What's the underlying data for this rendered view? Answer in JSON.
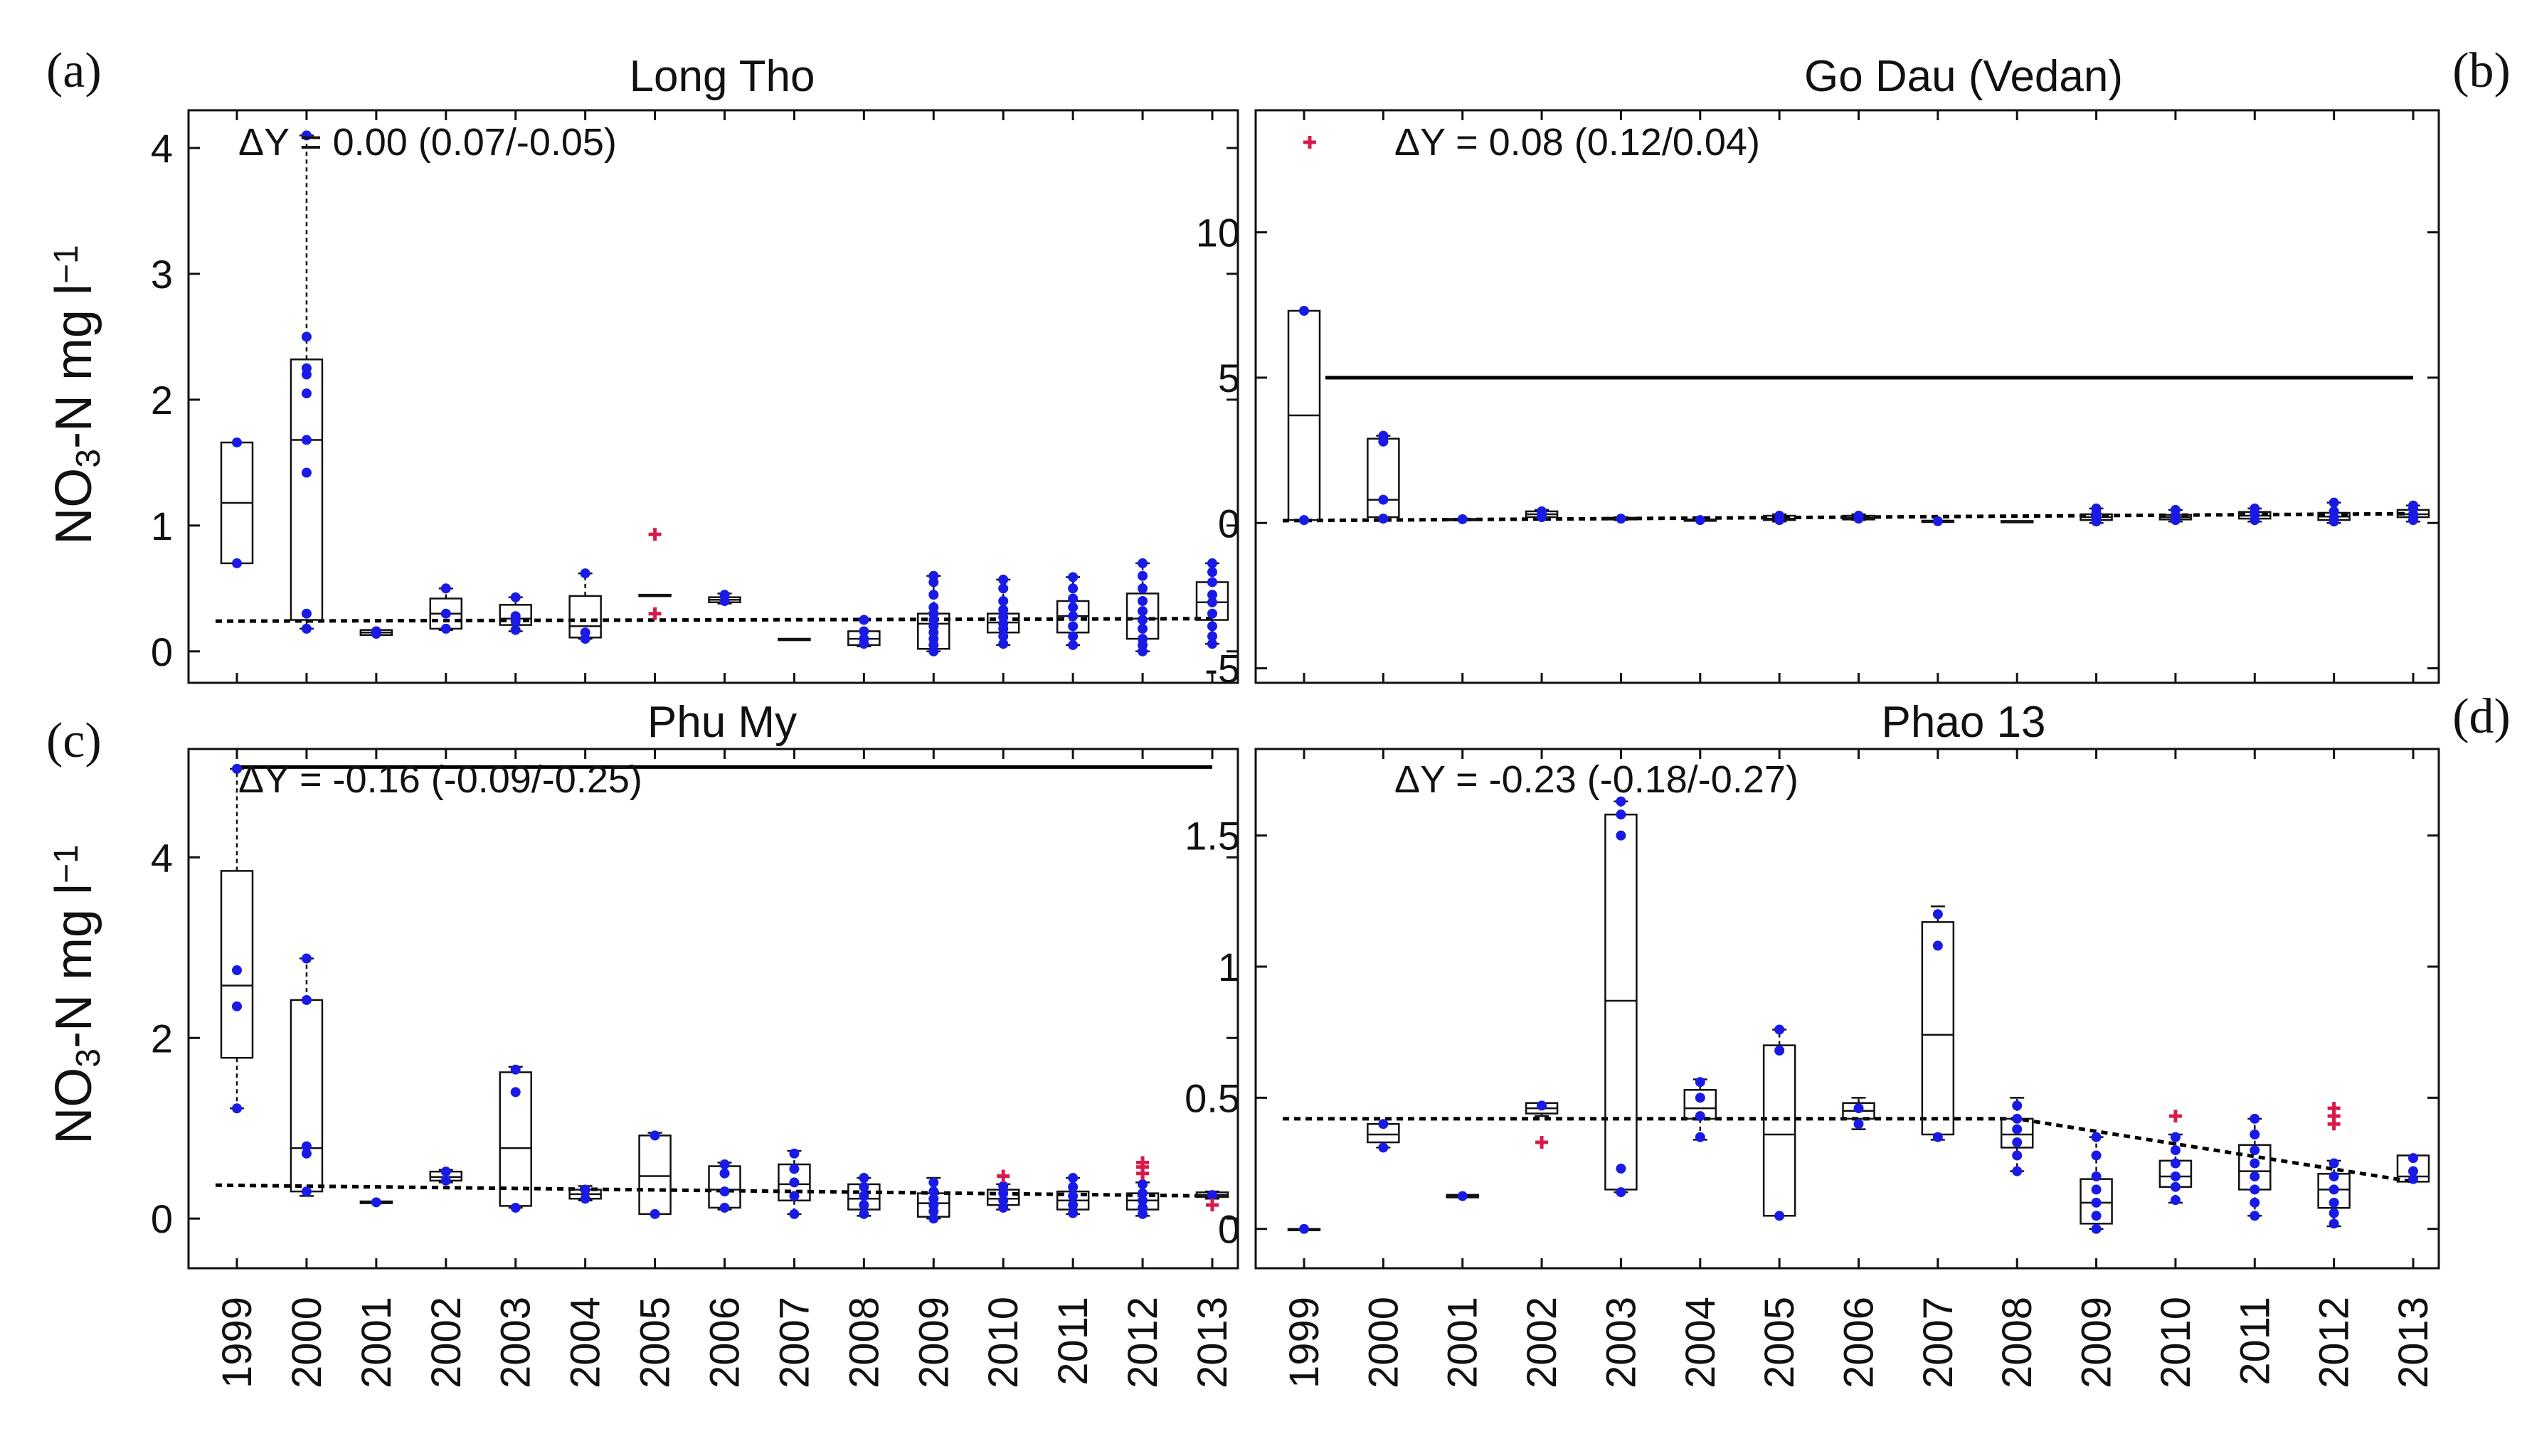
{
  "chart_data": [
    {
      "type": "box",
      "panel_label": "(a)",
      "title": "Long Tho",
      "ylabel": "NO3-N mg l-1",
      "ylim": [
        -0.25,
        4.3
      ],
      "yticks": [
        0,
        1,
        2,
        3,
        4
      ],
      "delta_text": "ΔY = 0.00 (0.07/-0.05)",
      "threshold": null,
      "trend": [
        {
          "x": "1999",
          "y": 0.24
        },
        {
          "x": "2013",
          "y": 0.26
        }
      ],
      "boxes": [
        {
          "x": "1999",
          "q1": 0.7,
          "med": 1.18,
          "q3": 1.66,
          "wlo": 0.7,
          "whi": 1.66,
          "pts": [
            0.7,
            1.66
          ],
          "out": []
        },
        {
          "x": "2000",
          "q1": 0.25,
          "med": 1.68,
          "q3": 2.32,
          "wlo": 0.18,
          "whi": 4.1,
          "pts": [
            0.18,
            0.3,
            1.42,
            1.68,
            2.05,
            2.2,
            2.25,
            2.5,
            4.1
          ],
          "out": []
        },
        {
          "x": "2001",
          "q1": 0.13,
          "med": 0.15,
          "q3": 0.17,
          "wlo": 0.13,
          "whi": 0.17,
          "pts": [
            0.14,
            0.16
          ],
          "out": []
        },
        {
          "x": "2002",
          "q1": 0.18,
          "med": 0.3,
          "q3": 0.42,
          "wlo": 0.17,
          "whi": 0.5,
          "pts": [
            0.18,
            0.3,
            0.5
          ],
          "out": []
        },
        {
          "x": "2003",
          "q1": 0.21,
          "med": 0.26,
          "q3": 0.37,
          "wlo": 0.16,
          "whi": 0.43,
          "pts": [
            0.17,
            0.24,
            0.28,
            0.43
          ],
          "out": []
        },
        {
          "x": "2004",
          "q1": 0.11,
          "med": 0.2,
          "q3": 0.44,
          "wlo": 0.1,
          "whi": 0.62,
          "pts": [
            0.1,
            0.15,
            0.62
          ],
          "out": []
        },
        {
          "x": "2005",
          "q1": 0.44,
          "med": 0.44,
          "q3": 0.45,
          "wlo": 0.44,
          "whi": 0.45,
          "pts": [],
          "out": [
            0.93,
            0.3
          ]
        },
        {
          "x": "2006",
          "q1": 0.39,
          "med": 0.41,
          "q3": 0.43,
          "wlo": 0.38,
          "whi": 0.46,
          "pts": [
            0.4,
            0.45
          ],
          "out": []
        },
        {
          "x": "2007",
          "q1": 0.1,
          "med": 0.1,
          "q3": 0.1,
          "wlo": 0.1,
          "whi": 0.1,
          "pts": [],
          "out": []
        },
        {
          "x": "2008",
          "q1": 0.05,
          "med": 0.1,
          "q3": 0.16,
          "wlo": 0.04,
          "whi": 0.25,
          "pts": [
            0.06,
            0.1,
            0.16,
            0.25
          ],
          "out": []
        },
        {
          "x": "2009",
          "q1": 0.02,
          "med": 0.22,
          "q3": 0.3,
          "wlo": 0.0,
          "whi": 0.6,
          "pts": [
            0.0,
            0.05,
            0.1,
            0.15,
            0.2,
            0.25,
            0.3,
            0.35,
            0.45,
            0.55,
            0.6
          ],
          "out": []
        },
        {
          "x": "2010",
          "q1": 0.15,
          "med": 0.23,
          "q3": 0.3,
          "wlo": 0.05,
          "whi": 0.57,
          "pts": [
            0.06,
            0.12,
            0.18,
            0.22,
            0.27,
            0.33,
            0.4,
            0.5,
            0.57
          ],
          "out": []
        },
        {
          "x": "2011",
          "q1": 0.15,
          "med": 0.28,
          "q3": 0.4,
          "wlo": 0.05,
          "whi": 0.59,
          "pts": [
            0.05,
            0.12,
            0.2,
            0.28,
            0.35,
            0.42,
            0.5,
            0.59
          ],
          "out": []
        },
        {
          "x": "2012",
          "q1": 0.1,
          "med": 0.26,
          "q3": 0.46,
          "wlo": 0.0,
          "whi": 0.7,
          "pts": [
            0.0,
            0.05,
            0.1,
            0.18,
            0.25,
            0.32,
            0.4,
            0.5,
            0.6,
            0.7
          ],
          "out": []
        },
        {
          "x": "2013",
          "q1": 0.25,
          "med": 0.39,
          "q3": 0.55,
          "wlo": 0.06,
          "whi": 0.7,
          "pts": [
            0.06,
            0.12,
            0.2,
            0.3,
            0.39,
            0.45,
            0.55,
            0.63,
            0.7
          ],
          "out": []
        }
      ]
    },
    {
      "type": "box",
      "panel_label": "(b)",
      "title": "Go Dau (Vedan)",
      "ylabel": "",
      "ylim": [
        -5.5,
        14.2
      ],
      "yticks": [
        -5,
        0,
        5,
        10
      ],
      "delta_text": "ΔY = 0.08 (0.12/0.04)",
      "threshold": 5,
      "trend": [
        {
          "x": "1999",
          "y": 0.08
        },
        {
          "x": "2013",
          "y": 0.32
        }
      ],
      "boxes": [
        {
          "x": "1999",
          "q1": 0.1,
          "med": 3.7,
          "q3": 7.3,
          "wlo": 0.1,
          "whi": 7.3,
          "pts": [
            0.1,
            7.3
          ],
          "out": []
        },
        {
          "x": "2000",
          "q1": 0.2,
          "med": 0.8,
          "q3": 2.9,
          "wlo": 0.1,
          "whi": 3.0,
          "pts": [
            0.15,
            0.8,
            2.8,
            3.0
          ],
          "out": []
        },
        {
          "x": "2001",
          "q1": 0.12,
          "med": 0.13,
          "q3": 0.14,
          "wlo": 0.12,
          "whi": 0.14,
          "pts": [
            0.13
          ],
          "out": []
        },
        {
          "x": "2002",
          "q1": 0.2,
          "med": 0.3,
          "q3": 0.4,
          "wlo": 0.15,
          "whi": 0.45,
          "pts": [
            0.2,
            0.4
          ],
          "out": []
        },
        {
          "x": "2003",
          "q1": 0.12,
          "med": 0.15,
          "q3": 0.18,
          "wlo": 0.1,
          "whi": 0.2,
          "pts": [
            0.15
          ],
          "out": []
        },
        {
          "x": "2004",
          "q1": 0.08,
          "med": 0.1,
          "q3": 0.12,
          "wlo": 0.08,
          "whi": 0.12,
          "pts": [
            0.1
          ],
          "out": []
        },
        {
          "x": "2005",
          "q1": 0.1,
          "med": 0.15,
          "q3": 0.25,
          "wlo": 0.05,
          "whi": 0.3,
          "pts": [
            0.1,
            0.25
          ],
          "out": []
        },
        {
          "x": "2006",
          "q1": 0.12,
          "med": 0.18,
          "q3": 0.25,
          "wlo": 0.1,
          "whi": 0.3,
          "pts": [
            0.15,
            0.25
          ],
          "out": []
        },
        {
          "x": "2007",
          "q1": 0.04,
          "med": 0.06,
          "q3": 0.08,
          "wlo": 0.04,
          "whi": 0.08,
          "pts": [
            0.06
          ],
          "out": []
        },
        {
          "x": "2008",
          "q1": 0.05,
          "med": 0.06,
          "q3": 0.07,
          "wlo": 0.05,
          "whi": 0.07,
          "pts": [],
          "out": []
        },
        {
          "x": "2009",
          "q1": 0.1,
          "med": 0.2,
          "q3": 0.3,
          "wlo": 0.0,
          "whi": 0.5,
          "pts": [
            0.05,
            0.2,
            0.35,
            0.5
          ],
          "out": []
        },
        {
          "x": "2010",
          "q1": 0.12,
          "med": 0.2,
          "q3": 0.28,
          "wlo": 0.05,
          "whi": 0.45,
          "pts": [
            0.1,
            0.25,
            0.45
          ],
          "out": []
        },
        {
          "x": "2011",
          "q1": 0.15,
          "med": 0.25,
          "q3": 0.38,
          "wlo": 0.05,
          "whi": 0.5,
          "pts": [
            0.1,
            0.3,
            0.5
          ],
          "out": []
        },
        {
          "x": "2012",
          "q1": 0.1,
          "med": 0.22,
          "q3": 0.35,
          "wlo": 0.0,
          "whi": 0.7,
          "pts": [
            0.05,
            0.2,
            0.4,
            0.7
          ],
          "out": []
        },
        {
          "x": "2013",
          "q1": 0.2,
          "med": 0.3,
          "q3": 0.45,
          "wlo": 0.05,
          "whi": 0.6,
          "pts": [
            0.1,
            0.3,
            0.5,
            0.6
          ],
          "out": []
        }
      ],
      "outliers_extra": [
        {
          "x": "1999",
          "y": 13.1
        }
      ]
    },
    {
      "type": "box",
      "panel_label": "(c)",
      "title": "Phu My",
      "ylabel": "NO3-N mg l-1",
      "ylim": [
        -0.55,
        5.2
      ],
      "yticks": [
        0,
        2,
        4
      ],
      "delta_text": "ΔY = -0.16 (-0.09/-0.25)",
      "threshold": 5,
      "trend": [
        {
          "x": "1999",
          "y": 0.37
        },
        {
          "x": "2013",
          "y": 0.25
        }
      ],
      "boxes": [
        {
          "x": "1999",
          "q1": 1.78,
          "med": 2.58,
          "q3": 3.85,
          "wlo": 1.22,
          "whi": 4.98,
          "pts": [
            1.22,
            2.35,
            2.75,
            4.98
          ],
          "out": []
        },
        {
          "x": "2000",
          "q1": 0.3,
          "med": 0.78,
          "q3": 2.42,
          "wlo": 0.25,
          "whi": 2.88,
          "pts": [
            0.3,
            0.72,
            0.8,
            2.42,
            2.88
          ],
          "out": []
        },
        {
          "x": "2001",
          "q1": 0.17,
          "med": 0.18,
          "q3": 0.19,
          "wlo": 0.17,
          "whi": 0.19,
          "pts": [
            0.18
          ],
          "out": []
        },
        {
          "x": "2002",
          "q1": 0.42,
          "med": 0.46,
          "q3": 0.52,
          "wlo": 0.4,
          "whi": 0.54,
          "pts": [
            0.42,
            0.52
          ],
          "out": []
        },
        {
          "x": "2003",
          "q1": 0.14,
          "med": 0.78,
          "q3": 1.62,
          "wlo": 0.12,
          "whi": 1.68,
          "pts": [
            0.12,
            1.4,
            1.65
          ],
          "out": []
        },
        {
          "x": "2004",
          "q1": 0.22,
          "med": 0.27,
          "q3": 0.32,
          "wlo": 0.2,
          "whi": 0.36,
          "pts": [
            0.22,
            0.32
          ],
          "out": []
        },
        {
          "x": "2005",
          "q1": 0.05,
          "med": 0.47,
          "q3": 0.92,
          "wlo": 0.05,
          "whi": 0.95,
          "pts": [
            0.05,
            0.92
          ],
          "out": []
        },
        {
          "x": "2006",
          "q1": 0.12,
          "med": 0.32,
          "q3": 0.58,
          "wlo": 0.1,
          "whi": 0.62,
          "pts": [
            0.12,
            0.3,
            0.5,
            0.6
          ],
          "out": []
        },
        {
          "x": "2007",
          "q1": 0.2,
          "med": 0.38,
          "q3": 0.6,
          "wlo": 0.05,
          "whi": 0.75,
          "pts": [
            0.05,
            0.25,
            0.4,
            0.55,
            0.72
          ],
          "out": []
        },
        {
          "x": "2008",
          "q1": 0.1,
          "med": 0.22,
          "q3": 0.38,
          "wlo": 0.03,
          "whi": 0.45,
          "pts": [
            0.05,
            0.15,
            0.25,
            0.35,
            0.45
          ],
          "out": []
        },
        {
          "x": "2009",
          "q1": 0.02,
          "med": 0.17,
          "q3": 0.28,
          "wlo": 0.0,
          "whi": 0.45,
          "pts": [
            0.0,
            0.08,
            0.15,
            0.22,
            0.3,
            0.4
          ],
          "out": []
        },
        {
          "x": "2010",
          "q1": 0.15,
          "med": 0.22,
          "q3": 0.32,
          "wlo": 0.1,
          "whi": 0.38,
          "pts": [
            0.12,
            0.2,
            0.28,
            0.36
          ],
          "out": [
            0.47
          ]
        },
        {
          "x": "2011",
          "q1": 0.1,
          "med": 0.2,
          "q3": 0.3,
          "wlo": 0.05,
          "whi": 0.45,
          "pts": [
            0.06,
            0.15,
            0.25,
            0.35,
            0.45
          ],
          "out": []
        },
        {
          "x": "2012",
          "q1": 0.1,
          "med": 0.2,
          "q3": 0.28,
          "wlo": 0.03,
          "whi": 0.4,
          "pts": [
            0.05,
            0.12,
            0.2,
            0.28,
            0.38
          ],
          "out": [
            0.5,
            0.57,
            0.62
          ]
        },
        {
          "x": "2013",
          "q1": 0.24,
          "med": 0.26,
          "q3": 0.29,
          "wlo": 0.22,
          "whi": 0.3,
          "pts": [
            0.26
          ],
          "out": [
            0.15
          ]
        }
      ]
    },
    {
      "type": "box",
      "panel_label": "(d)",
      "title": "Phao 13",
      "ylabel": "",
      "ylim": [
        -0.15,
        1.83
      ],
      "yticks": [
        0,
        0.5,
        1,
        1.5
      ],
      "delta_text": "ΔY = -0.23 (-0.18/-0.27)",
      "threshold": null,
      "trend": [
        {
          "x": "1999",
          "y": 0.42
        },
        {
          "x": "2008",
          "y": 0.42
        },
        {
          "x": "2013",
          "y": 0.18
        }
      ],
      "boxes": [
        {
          "x": "1999",
          "q1": 0.0,
          "med": 0.0,
          "q3": 0.0,
          "wlo": 0.0,
          "whi": 0.0,
          "pts": [
            0.0
          ],
          "out": []
        },
        {
          "x": "2000",
          "q1": 0.33,
          "med": 0.36,
          "q3": 0.4,
          "wlo": 0.31,
          "whi": 0.4,
          "pts": [
            0.31,
            0.4
          ],
          "out": []
        },
        {
          "x": "2001",
          "q1": 0.12,
          "med": 0.125,
          "q3": 0.13,
          "wlo": 0.12,
          "whi": 0.13,
          "pts": [
            0.125
          ],
          "out": []
        },
        {
          "x": "2002",
          "q1": 0.44,
          "med": 0.46,
          "q3": 0.48,
          "wlo": 0.43,
          "whi": 0.48,
          "pts": [
            0.47
          ],
          "out": [
            0.33
          ]
        },
        {
          "x": "2003",
          "q1": 0.15,
          "med": 0.87,
          "q3": 1.58,
          "wlo": 0.14,
          "whi": 1.63,
          "pts": [
            0.14,
            0.23,
            1.5,
            1.58,
            1.63
          ],
          "out": []
        },
        {
          "x": "2004",
          "q1": 0.42,
          "med": 0.46,
          "q3": 0.53,
          "wlo": 0.34,
          "whi": 0.57,
          "pts": [
            0.35,
            0.43,
            0.5,
            0.56
          ],
          "out": []
        },
        {
          "x": "2005",
          "q1": 0.05,
          "med": 0.36,
          "q3": 0.7,
          "wlo": 0.05,
          "whi": 0.76,
          "pts": [
            0.05,
            0.68,
            0.76
          ],
          "out": []
        },
        {
          "x": "2006",
          "q1": 0.42,
          "med": 0.45,
          "q3": 0.48,
          "wlo": 0.38,
          "whi": 0.5,
          "pts": [
            0.4,
            0.46
          ],
          "out": []
        },
        {
          "x": "2007",
          "q1": 0.36,
          "med": 0.74,
          "q3": 1.17,
          "wlo": 0.34,
          "whi": 1.23,
          "pts": [
            0.35,
            1.08,
            1.2
          ],
          "out": []
        },
        {
          "x": "2008",
          "q1": 0.31,
          "med": 0.36,
          "q3": 0.42,
          "wlo": 0.22,
          "whi": 0.5,
          "pts": [
            0.22,
            0.28,
            0.33,
            0.38,
            0.42,
            0.47
          ],
          "out": []
        },
        {
          "x": "2009",
          "q1": 0.02,
          "med": 0.1,
          "q3": 0.19,
          "wlo": 0.0,
          "whi": 0.35,
          "pts": [
            0.0,
            0.05,
            0.1,
            0.15,
            0.2,
            0.28,
            0.35
          ],
          "out": []
        },
        {
          "x": "2010",
          "q1": 0.16,
          "med": 0.2,
          "q3": 0.26,
          "wlo": 0.1,
          "whi": 0.36,
          "pts": [
            0.11,
            0.16,
            0.2,
            0.25,
            0.3,
            0.35
          ],
          "out": [
            0.43
          ]
        },
        {
          "x": "2011",
          "q1": 0.15,
          "med": 0.22,
          "q3": 0.32,
          "wlo": 0.05,
          "whi": 0.42,
          "pts": [
            0.05,
            0.1,
            0.15,
            0.2,
            0.25,
            0.3,
            0.36,
            0.42
          ],
          "out": []
        },
        {
          "x": "2012",
          "q1": 0.08,
          "med": 0.15,
          "q3": 0.21,
          "wlo": 0.01,
          "whi": 0.26,
          "pts": [
            0.02,
            0.06,
            0.1,
            0.15,
            0.2,
            0.25
          ],
          "out": [
            0.4,
            0.43,
            0.46
          ]
        },
        {
          "x": "2013",
          "q1": 0.18,
          "med": 0.2,
          "q3": 0.28,
          "wlo": 0.18,
          "whi": 0.28,
          "pts": [
            0.19,
            0.22,
            0.27
          ],
          "out": []
        }
      ]
    }
  ],
  "years": [
    "1999",
    "2000",
    "2001",
    "2002",
    "2003",
    "2004",
    "2005",
    "2006",
    "2007",
    "2008",
    "2009",
    "2010",
    "2011",
    "2012",
    "2013"
  ],
  "colors": {
    "box": "#111111",
    "points": "#1a1ae6",
    "outliers": "#d81a4a",
    "threshold": "#000000",
    "trend": "#000000"
  }
}
